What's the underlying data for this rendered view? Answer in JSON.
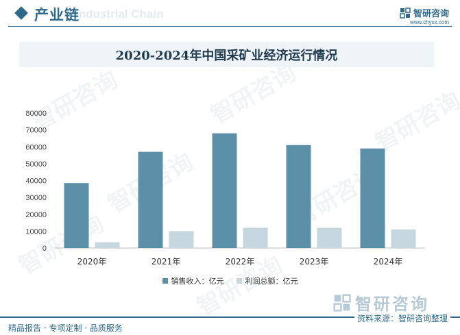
{
  "header": {
    "section_title": "产业链",
    "section_title_en": "Industrial Chain",
    "brand_name": "智研咨询",
    "brand_url": "www.chyxx.com"
  },
  "colors": {
    "primary": "#2f6a8a",
    "series_sales": "#5b8fa8",
    "series_profit": "#c5d6df",
    "banner_bg": "#eef4f8"
  },
  "chart_data": {
    "type": "bar",
    "title": "2020-2024年中国采矿业经济运行情况",
    "categories": [
      "2020年",
      "2021年",
      "2022年",
      "2023年",
      "2024年"
    ],
    "series": [
      {
        "name": "销售收入：亿元",
        "values": [
          38500,
          57000,
          68000,
          61000,
          59000
        ]
      },
      {
        "name": "利润总额：亿元",
        "values": [
          3400,
          10000,
          12000,
          12000,
          11000
        ]
      }
    ],
    "ylim": [
      0,
      80000
    ],
    "yticks": [
      0,
      10000,
      20000,
      30000,
      40000,
      50000,
      60000,
      70000,
      80000
    ],
    "grid": false,
    "legend": "bottom"
  },
  "watermark": "智研咨询",
  "footer": {
    "left": "精品报告 · 专项定制 · 品质服务",
    "right": "资料来源：智研咨询整理"
  }
}
